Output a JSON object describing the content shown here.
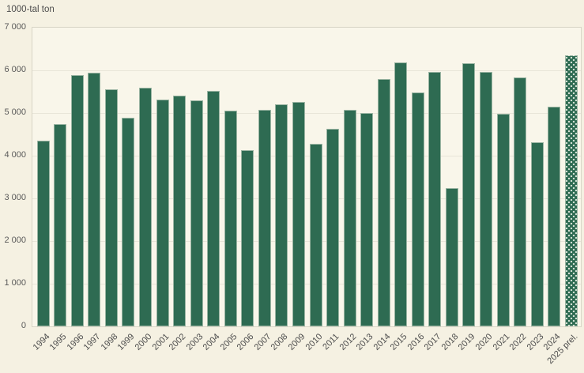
{
  "chart_data": {
    "type": "bar",
    "title": "",
    "ylabel": "1000-tal ton",
    "xlabel": "",
    "legend_position": "none",
    "grid": "horizontal",
    "ylim": [
      0,
      7000
    ],
    "ytick_step": 1000,
    "ytick_labels": [
      "0",
      "1 000",
      "2 000",
      "3 000",
      "4 000",
      "5 000",
      "6 000",
      "7 000"
    ],
    "categories": [
      "1994",
      "1995",
      "1996",
      "1997",
      "1998",
      "1999",
      "2000",
      "2001",
      "2002",
      "2003",
      "2004",
      "2005",
      "2006",
      "2007",
      "2008",
      "2009",
      "2010",
      "2011",
      "2012",
      "2013",
      "2014",
      "2015",
      "2016",
      "2017",
      "2018",
      "2019",
      "2020",
      "2021",
      "2022",
      "2023",
      "2024",
      "2025 prel."
    ],
    "values": [
      4350,
      4740,
      5890,
      5940,
      5555,
      4890,
      5600,
      5320,
      5400,
      5290,
      5510,
      5055,
      4125,
      5075,
      5200,
      5255,
      4285,
      4635,
      5070,
      4995,
      5790,
      6180,
      5480,
      5965,
      3250,
      6160,
      5955,
      4975,
      5825,
      4315,
      5140,
      6350
    ],
    "last_bar_style": "dotted-pattern",
    "last_bar_meaning": "preliminary"
  },
  "colors": {
    "bar": "#2e6b52",
    "pattern_dot": "#d8e4d8",
    "background": "#f5f1e2",
    "plot_background": "#f9f6ea",
    "gridline": "#e8e5d8",
    "plot_frame": "#d8d5c6",
    "y_axis_text": "#595959",
    "x_axis_text": "#4d4d4d",
    "title_text": "#4d4d4d"
  }
}
